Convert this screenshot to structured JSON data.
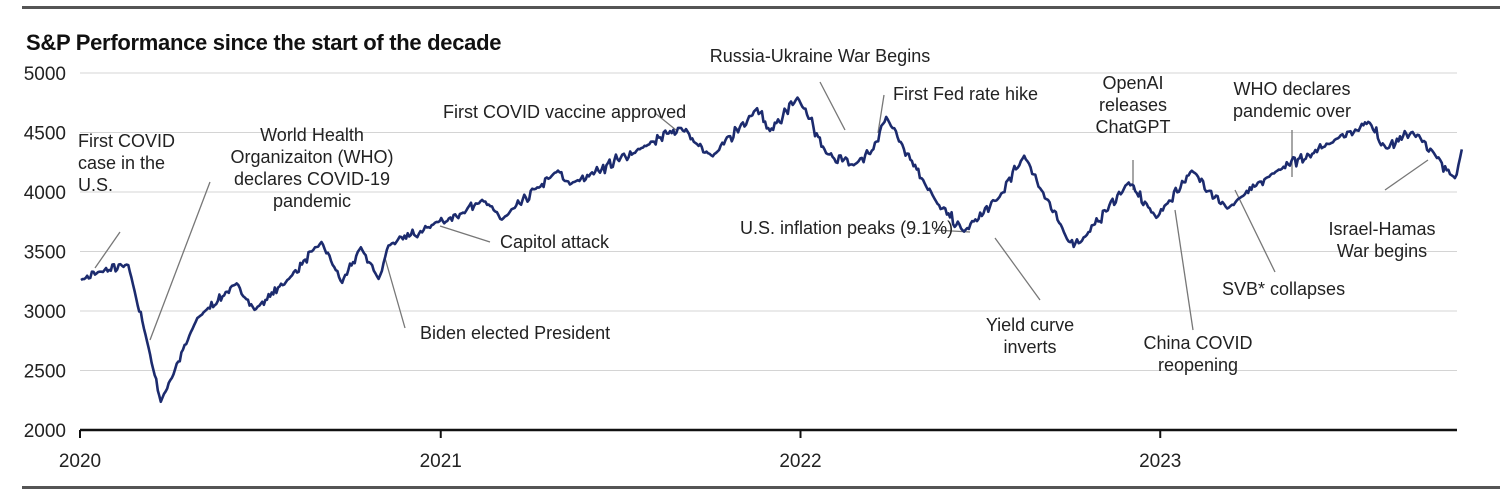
{
  "chart_data": {
    "type": "line",
    "title": "S&P Performance since the start of the decade",
    "xlabel": "",
    "ylabel": "",
    "ylim": [
      2000,
      5000
    ],
    "yticks": [
      2000,
      2500,
      3000,
      3500,
      4000,
      4500,
      5000
    ],
    "xticks": [
      "2020",
      "2021",
      "2022",
      "2023"
    ],
    "grid": true,
    "series": [
      {
        "color": "#1c2b6e",
        "x": [
          "2020-01-02",
          "2020-01-21",
          "2020-02-19",
          "2020-03-09",
          "2020-03-23",
          "2020-04-29",
          "2020-06-08",
          "2020-06-26",
          "2020-07-31",
          "2020-09-02",
          "2020-09-23",
          "2020-10-12",
          "2020-10-30",
          "2020-11-09",
          "2020-12-31",
          "2021-01-06",
          "2021-02-12",
          "2021-03-04",
          "2021-04-30",
          "2021-05-12",
          "2021-07-30",
          "2021-09-02",
          "2021-10-04",
          "2021-11-18",
          "2021-12-01",
          "2021-12-29",
          "2022-01-27",
          "2022-02-24",
          "2022-03-16",
          "2022-03-29",
          "2022-05-20",
          "2022-06-16",
          "2022-07-22",
          "2022-08-16",
          "2022-09-30",
          "2022-10-12",
          "2022-11-30",
          "2022-12-28",
          "2023-02-02",
          "2023-03-10",
          "2023-04-28",
          "2023-06-30",
          "2023-07-31",
          "2023-08-18",
          "2023-09-14",
          "2023-10-07",
          "2023-10-27",
          "2023-11-03"
        ],
        "values": [
          3260,
          3330,
          3386,
          2746,
          2237,
          2940,
          3232,
          3009,
          3271,
          3580,
          3237,
          3535,
          3270,
          3550,
          3756,
          3750,
          3934,
          3768,
          4180,
          4063,
          4395,
          4537,
          4300,
          4704,
          4513,
          4793,
          4327,
          4225,
          4360,
          4631,
          3901,
          3667,
          3960,
          4305,
          3585,
          3577,
          4080,
          3783,
          4179,
          3861,
          4170,
          4450,
          4589,
          4369,
          4505,
          4309,
          4117,
          4358
        ]
      }
    ],
    "annotations": [
      {
        "date": "2020-01-21",
        "lines": [
          "First COVID",
          "case in the",
          "U.S."
        ]
      },
      {
        "date": "2020-03-11",
        "lines": [
          "World Health",
          "Organizaiton (WHO)",
          "declares COVID-19",
          "pandemic"
        ]
      },
      {
        "date": "2020-11-07",
        "lines": [
          "Biden elected President"
        ]
      },
      {
        "date": "2020-12-11",
        "lines": [
          "First COVID vaccine approved"
        ]
      },
      {
        "date": "2021-01-06",
        "lines": [
          "Capitol attack"
        ]
      },
      {
        "date": "2022-02-24",
        "lines": [
          "Russia-Ukraine War Begins"
        ]
      },
      {
        "date": "2022-03-16",
        "lines": [
          "First Fed rate hike"
        ]
      },
      {
        "date": "2022-06-10",
        "lines": [
          "U.S. inflation peaks (9.1%)"
        ]
      },
      {
        "date": "2022-07-05",
        "lines": [
          "Yield curve",
          "inverts"
        ]
      },
      {
        "date": "2022-11-30",
        "lines": [
          "OpenAI",
          "releases",
          "ChatGPT"
        ]
      },
      {
        "date": "2022-12-07",
        "lines": [
          "China COVID",
          "reopening"
        ]
      },
      {
        "date": "2023-03-10",
        "lines": [
          "SVB* collapses"
        ]
      },
      {
        "date": "2023-05-05",
        "lines": [
          "WHO declares",
          "pandemic over"
        ]
      },
      {
        "date": "2023-10-07",
        "lines": [
          "Israel-Hamas",
          "War begins"
        ]
      }
    ]
  }
}
